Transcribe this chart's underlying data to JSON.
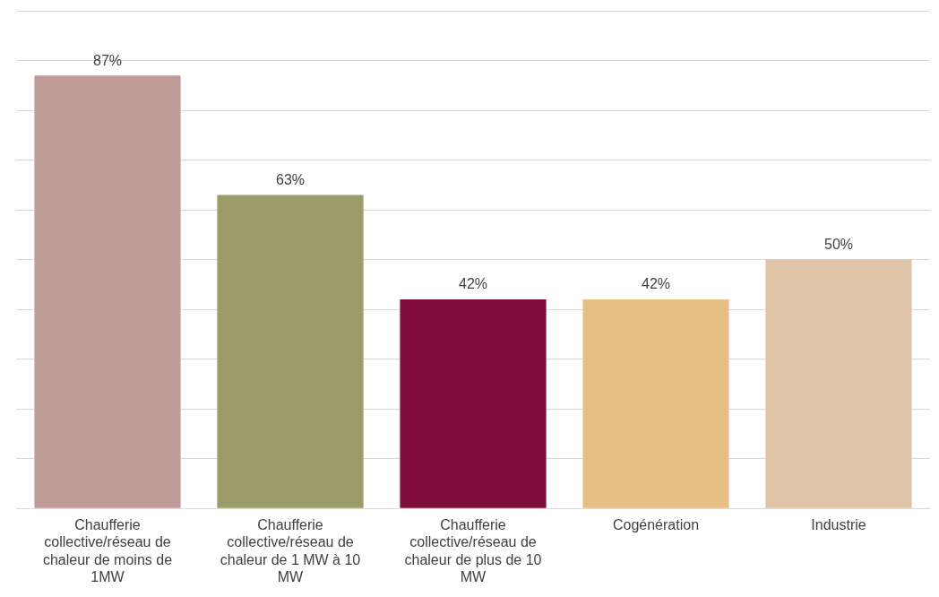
{
  "chart_data": {
    "type": "bar",
    "categories": [
      "Chaufferie collective/réseau de chaleur de moins de 1MW",
      "Chaufferie collective/réseau de chaleur de 1 MW à 10 MW",
      "Chaufferie collective/réseau de chaleur de plus de 10 MW",
      "Cogénération",
      "Industrie"
    ],
    "values": [
      87,
      63,
      42,
      42,
      50
    ],
    "colors": [
      "#bf9b98",
      "#9e9b6a",
      "#7e0d3e",
      "#e6bd82",
      "#dfc4a8"
    ],
    "value_labels": [
      "87%",
      "63%",
      "42%",
      "42%",
      "50%"
    ],
    "ylim": [
      0,
      100
    ],
    "yticks": [
      {
        "value": 0,
        "label": null
      },
      {
        "value": 10,
        "label": null
      },
      {
        "value": 20,
        "label": null
      },
      {
        "value": 30,
        "label": null
      },
      {
        "value": 40,
        "label": null
      },
      {
        "value": 50,
        "label": null
      },
      {
        "value": 60,
        "label": null
      },
      {
        "value": 70,
        "label": null
      },
      {
        "value": 80,
        "label": null
      },
      {
        "value": 90,
        "label": null
      },
      {
        "value": 100,
        "label": null
      }
    ],
    "grid": "y",
    "tick_labels": "x",
    "legend": false
  }
}
